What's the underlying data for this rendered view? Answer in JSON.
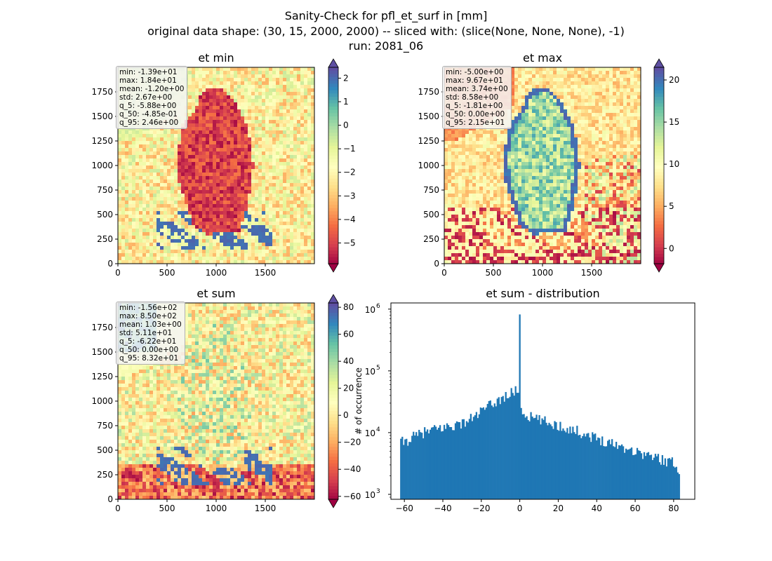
{
  "suptitle": {
    "line1": "Sanity-Check for pfl_et_surf in [mm]",
    "line2": "original data shape: (30, 15, 2000, 2000) -- sliced with: (slice(None, None, None), -1)",
    "line3": "run: 2081_06"
  },
  "chart_data": [
    {
      "type": "heatmap",
      "title": "et min",
      "colormap": "Spectral",
      "xlim": [
        0,
        2000
      ],
      "ylim": [
        0,
        2000
      ],
      "x_ticks": [
        "0",
        "500",
        "1000",
        "1500"
      ],
      "y_ticks": [
        "0",
        "250",
        "500",
        "750",
        "1000",
        "1250",
        "1500",
        "1750"
      ],
      "colorbar": {
        "vmin": -5.88,
        "vmax": 2.46,
        "extend": "both",
        "ticks": [
          "2",
          "1",
          "0",
          "−1",
          "−2",
          "−3",
          "−4",
          "−5"
        ],
        "tick_values": [
          2,
          1,
          0,
          -1,
          -2,
          -3,
          -4,
          -5
        ]
      },
      "stats": [
        "min: -1.39e+01",
        "max: 1.84e+01",
        "mean: -1.20e+00",
        "std: 2.67e+00",
        "q_5: -5.88e+00",
        "q_50: -4.85e-01",
        "q_95: 2.46e+00"
      ]
    },
    {
      "type": "heatmap",
      "title": "et max",
      "colormap": "Spectral",
      "xlim": [
        0,
        2000
      ],
      "ylim": [
        0,
        2000
      ],
      "x_ticks": [
        "0",
        "500",
        "1000",
        "1500"
      ],
      "y_ticks": [
        "0",
        "250",
        "500",
        "750",
        "1000",
        "1250",
        "1500",
        "1750"
      ],
      "colorbar": {
        "vmin": -1.81,
        "vmax": 21.5,
        "extend": "both",
        "ticks": [
          "20",
          "15",
          "10",
          "5",
          "0"
        ],
        "tick_values": [
          20,
          15,
          10,
          5,
          0
        ]
      },
      "stats": [
        "min: -5.00e+00",
        "max: 9.67e+01",
        "mean: 3.74e+00",
        "std: 8.58e+00",
        "q_5: -1.81e+00",
        "q_50: 0.00e+00",
        "q_95: 2.15e+01"
      ]
    },
    {
      "type": "heatmap",
      "title": "et sum",
      "colormap": "Spectral",
      "xlim": [
        0,
        2000
      ],
      "ylim": [
        0,
        2000
      ],
      "x_ticks": [
        "0",
        "500",
        "1000",
        "1500"
      ],
      "y_ticks": [
        "0",
        "250",
        "500",
        "750",
        "1000",
        "1250",
        "1500",
        "1750"
      ],
      "colorbar": {
        "vmin": -62.2,
        "vmax": 83.2,
        "extend": "both",
        "ticks": [
          "80",
          "60",
          "40",
          "20",
          "0",
          "−20",
          "−40",
          "−60"
        ],
        "tick_values": [
          80,
          60,
          40,
          20,
          0,
          -20,
          -40,
          -60
        ]
      },
      "stats": [
        "min: -1.56e+02",
        "max: 8.50e+02",
        "mean: 1.03e+00",
        "std: 5.11e+01",
        "q_5: -6.22e+01",
        "q_50: 0.00e+00",
        "q_95: 8.32e+01"
      ]
    },
    {
      "type": "bar",
      "subtype": "histogram",
      "title": "et sum - distribution",
      "ylabel": "# of occurrence",
      "xlabel": "",
      "yscale": "log",
      "xlim": [
        -67,
        91
      ],
      "ylim_log10": [
        2.92,
        6.1
      ],
      "x_ticks": [
        "−60",
        "−40",
        "−20",
        "0",
        "20",
        "40",
        "60",
        "80"
      ],
      "x_tick_values": [
        -60,
        -40,
        -20,
        0,
        20,
        40,
        60,
        80
      ],
      "y_ticks": [
        {
          "base": "10",
          "exp": "3",
          "log10": 3
        },
        {
          "base": "10",
          "exp": "4",
          "log10": 4
        },
        {
          "base": "10",
          "exp": "5",
          "log10": 5
        },
        {
          "base": "10",
          "exp": "6",
          "log10": 6
        }
      ],
      "bar_color": "#1f77b4",
      "bin_range": [
        -62.2,
        83.2
      ],
      "bins": 200,
      "profile_x": [
        -62.2,
        -60,
        -55,
        -50,
        -45,
        -40,
        -35,
        -30,
        -25,
        -20,
        -15,
        -10,
        -5,
        -1,
        -0.3,
        0,
        0.3,
        1,
        2,
        5,
        10,
        20,
        30,
        40,
        50,
        60,
        70,
        80,
        83.2
      ],
      "profile_count": [
        7000,
        7000,
        8500,
        10000,
        11000,
        12000,
        13000,
        14000,
        17000,
        22000,
        28000,
        35000,
        42000,
        50000,
        52000,
        820000,
        25000,
        22000,
        20000,
        18000,
        16000,
        13000,
        10500,
        8000,
        6500,
        5000,
        4000,
        3200,
        2500
      ]
    }
  ]
}
